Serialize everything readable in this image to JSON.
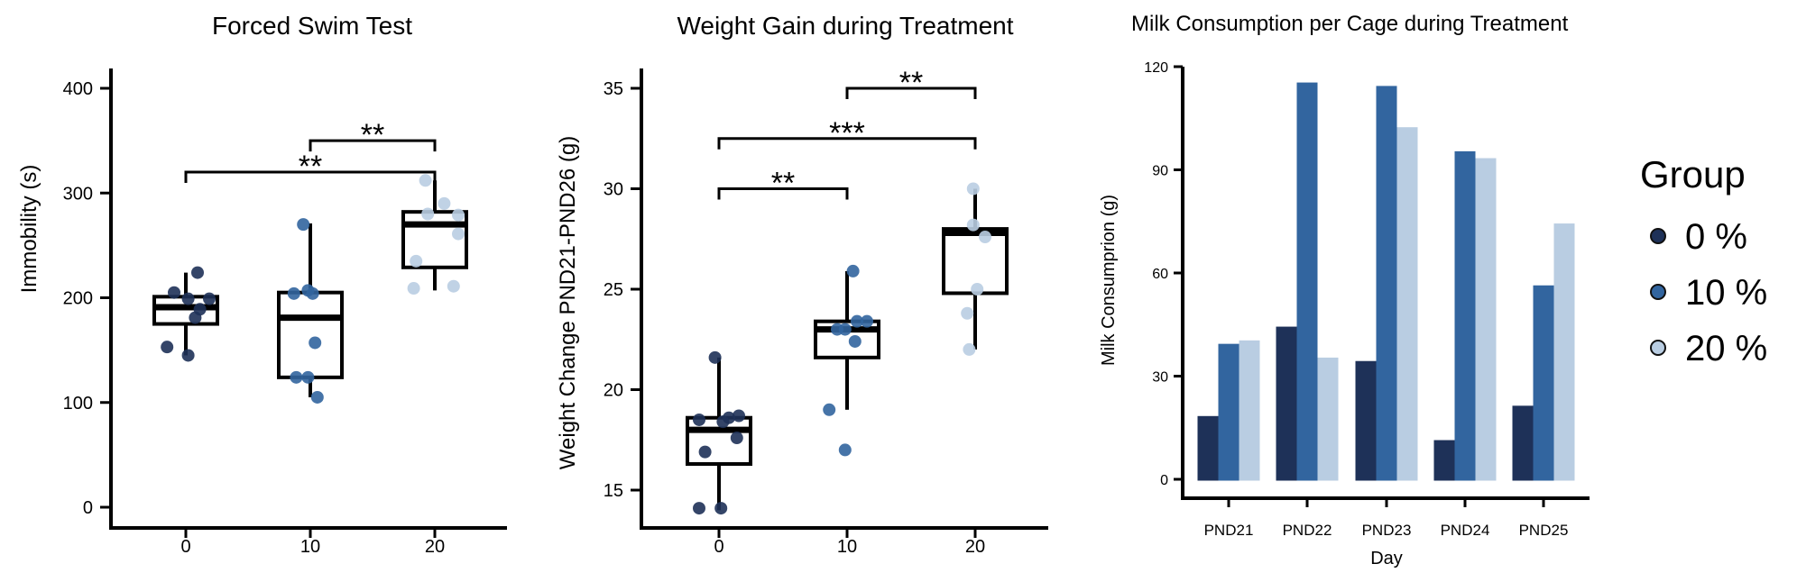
{
  "chart_data": [
    {
      "type": "box",
      "title": "Forced Swim Test",
      "xlabel": "",
      "ylabel": "Immobility (s)",
      "categories": [
        "0",
        "10",
        "20"
      ],
      "ylim": [
        -20,
        420
      ],
      "yticks": [
        0,
        100,
        200,
        300,
        400
      ],
      "colors": [
        "#1e3158",
        "#32659f",
        "#b9cde2"
      ],
      "boxes": [
        {
          "category": "0",
          "whisker_low": 145,
          "q1": 175,
          "median": 191,
          "q3": 201,
          "whisker_high": 224
        },
        {
          "category": "10",
          "whisker_low": 105,
          "q1": 124,
          "median": 181,
          "q3": 205,
          "whisker_high": 271
        },
        {
          "category": "20",
          "whisker_low": 207,
          "q1": 229,
          "median": 270,
          "q3": 282,
          "whisker_high": 312
        }
      ],
      "points": [
        {
          "category": "0",
          "jitter": 0.5,
          "y": 224
        },
        {
          "category": "0",
          "jitter": -0.5,
          "y": 205
        },
        {
          "category": "0",
          "jitter": 0.1,
          "y": 199
        },
        {
          "category": "0",
          "jitter": 0.6,
          "y": 189
        },
        {
          "category": "0",
          "jitter": 0.4,
          "y": 181
        },
        {
          "category": "0",
          "jitter": 1.0,
          "y": 199
        },
        {
          "category": "0",
          "jitter": -0.8,
          "y": 153
        },
        {
          "category": "0",
          "jitter": 0.1,
          "y": 145
        },
        {
          "category": "10",
          "jitter": -0.7,
          "y": 204
        },
        {
          "category": "10",
          "jitter": -0.1,
          "y": 207
        },
        {
          "category": "10",
          "jitter": 0.1,
          "y": 204
        },
        {
          "category": "10",
          "jitter": -0.6,
          "y": 124
        },
        {
          "category": "10",
          "jitter": -0.1,
          "y": 124
        },
        {
          "category": "10",
          "jitter": 0.2,
          "y": 157
        },
        {
          "category": "10",
          "jitter": -0.3,
          "y": 270
        },
        {
          "category": "10",
          "jitter": 0.3,
          "y": 105
        },
        {
          "category": "20",
          "jitter": -0.4,
          "y": 312
        },
        {
          "category": "20",
          "jitter": 0.4,
          "y": 290
        },
        {
          "category": "20",
          "jitter": 1.0,
          "y": 279
        },
        {
          "category": "20",
          "jitter": 1.0,
          "y": 261
        },
        {
          "category": "20",
          "jitter": -0.3,
          "y": 280
        },
        {
          "category": "20",
          "jitter": -0.8,
          "y": 235
        },
        {
          "category": "20",
          "jitter": -0.9,
          "y": 209
        },
        {
          "category": "20",
          "jitter": 0.8,
          "y": 211
        }
      ],
      "significance": [
        {
          "from": "0",
          "to": "20",
          "y": 320,
          "label": "**"
        },
        {
          "from": "10",
          "to": "20",
          "y": 350,
          "label": "**"
        }
      ]
    },
    {
      "type": "box",
      "title": "Weight Gain during Treatment",
      "xlabel": "",
      "ylabel": "Weight Change PND21-PND26 (g)",
      "categories": [
        "0",
        "10",
        "20"
      ],
      "ylim": [
        13,
        36
      ],
      "yticks": [
        15,
        20,
        25,
        30,
        35
      ],
      "colors": [
        "#1e3158",
        "#32659f",
        "#b9cde2"
      ],
      "boxes": [
        {
          "category": "0",
          "whisker_low": 14.0,
          "q1": 16.3,
          "median": 18.0,
          "q3": 18.6,
          "whisker_high": 21.6
        },
        {
          "category": "10",
          "whisker_low": 19.0,
          "q1": 21.6,
          "median": 23.0,
          "q3": 23.4,
          "whisker_high": 25.9
        },
        {
          "category": "20",
          "whisker_low": 22.0,
          "q1": 24.8,
          "median": 27.8,
          "q3": 28.0,
          "whisker_high": 30.0
        }
      ],
      "points": [
        {
          "category": "0",
          "jitter": -0.2,
          "y": 21.6
        },
        {
          "category": "0",
          "jitter": -1.0,
          "y": 18.5
        },
        {
          "category": "0",
          "jitter": 0.5,
          "y": 18.6
        },
        {
          "category": "0",
          "jitter": 1.0,
          "y": 18.7
        },
        {
          "category": "0",
          "jitter": 0.2,
          "y": 18.4
        },
        {
          "category": "0",
          "jitter": 0.9,
          "y": 17.6
        },
        {
          "category": "0",
          "jitter": -0.7,
          "y": 16.9
        },
        {
          "category": "0",
          "jitter": 0.1,
          "y": 14.1
        },
        {
          "category": "0",
          "jitter": -1.0,
          "y": 14.1
        },
        {
          "category": "10",
          "jitter": 0.3,
          "y": 25.9
        },
        {
          "category": "10",
          "jitter": -0.1,
          "y": 23.0
        },
        {
          "category": "10",
          "jitter": -0.5,
          "y": 23.0
        },
        {
          "category": "10",
          "jitter": 0.5,
          "y": 23.4
        },
        {
          "category": "10",
          "jitter": 1.0,
          "y": 23.4
        },
        {
          "category": "10",
          "jitter": 0.4,
          "y": 22.4
        },
        {
          "category": "10",
          "jitter": -0.9,
          "y": 19.0
        },
        {
          "category": "10",
          "jitter": -0.1,
          "y": 17.0
        },
        {
          "category": "20",
          "jitter": -0.1,
          "y": 30.0
        },
        {
          "category": "20",
          "jitter": -0.1,
          "y": 28.2
        },
        {
          "category": "20",
          "jitter": 0.5,
          "y": 27.6
        },
        {
          "category": "20",
          "jitter": 0.1,
          "y": 25.0
        },
        {
          "category": "20",
          "jitter": -0.4,
          "y": 23.8
        },
        {
          "category": "20",
          "jitter": -0.3,
          "y": 22.0
        }
      ],
      "significance": [
        {
          "from": "0",
          "to": "10",
          "y": 30.0,
          "label": "**"
        },
        {
          "from": "0",
          "to": "20",
          "y": 32.5,
          "label": "***"
        },
        {
          "from": "10",
          "to": "20",
          "y": 35.0,
          "label": "**"
        }
      ]
    },
    {
      "type": "bar",
      "title": "Milk Consumption per Cage during Treatment",
      "xlabel": "Day",
      "ylabel": "Milk Consumprion (g)",
      "categories": [
        "PND21",
        "PND22",
        "PND23",
        "PND24",
        "PND25"
      ],
      "ylim": [
        -5,
        120
      ],
      "yticks": [
        0,
        30,
        60,
        90,
        120
      ],
      "series": [
        {
          "name": "0 %",
          "color": "#1e3158",
          "values": [
            18,
            44,
            34,
            11,
            21
          ]
        },
        {
          "name": "10 %",
          "color": "#32659f",
          "values": [
            39,
            115,
            114,
            95,
            56
          ]
        },
        {
          "name": "20 %",
          "color": "#b9cde2",
          "values": [
            40,
            35,
            102,
            93,
            74
          ]
        }
      ]
    }
  ],
  "legend": {
    "title": "Group",
    "items": [
      {
        "label": "0 %",
        "color": "#1e3158"
      },
      {
        "label": "10 %",
        "color": "#32659f"
      },
      {
        "label": "20 %",
        "color": "#b9cde2"
      }
    ]
  }
}
